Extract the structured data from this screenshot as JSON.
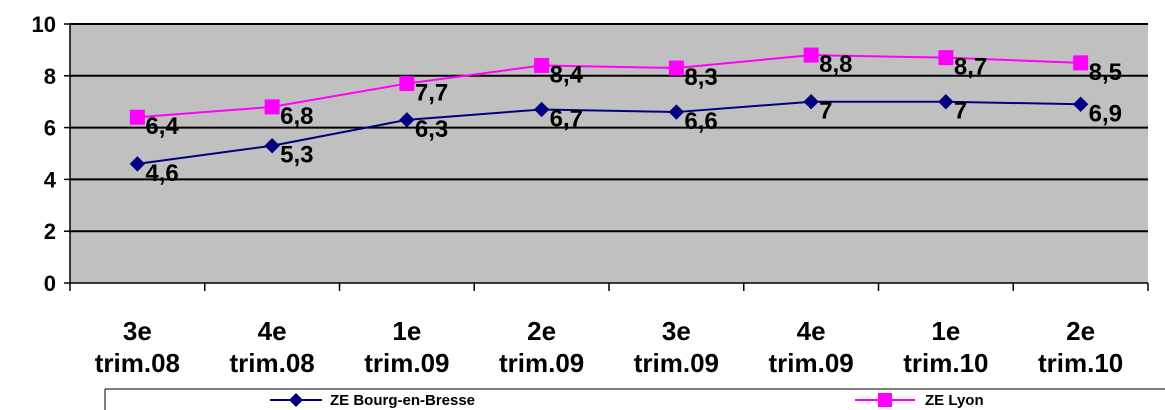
{
  "chart_data": {
    "type": "line",
    "categories": [
      [
        "3e",
        "trim.08"
      ],
      [
        "4e",
        "trim.08"
      ],
      [
        "1e",
        "trim.09"
      ],
      [
        "2e",
        "trim.09"
      ],
      [
        "3e",
        "trim.09"
      ],
      [
        "4e",
        "trim.09"
      ],
      [
        "1e",
        "trim.10"
      ],
      [
        "2e",
        "trim.10"
      ]
    ],
    "series": [
      {
        "name": "ZE Bourg-en-Bresse",
        "color": "#000080",
        "marker": "diamond",
        "values": [
          4.6,
          5.3,
          6.3,
          6.7,
          6.6,
          7,
          7,
          6.9
        ],
        "labels": [
          "4,6",
          "5,3",
          "6,3",
          "6,7",
          "6,6",
          "7",
          "7",
          "6,9"
        ]
      },
      {
        "name": "ZE Lyon",
        "color": "#FF00FF",
        "marker": "square",
        "values": [
          6.4,
          6.8,
          7.7,
          8.4,
          8.3,
          8.8,
          8.7,
          8.5
        ],
        "labels": [
          "6,4",
          "6,8",
          "7,7",
          "8,4",
          "8,3",
          "8,8",
          "8,7",
          "8,5"
        ]
      }
    ],
    "ylim": [
      0,
      10
    ],
    "yticks": [
      0,
      2,
      4,
      6,
      8,
      10
    ],
    "grid": true,
    "plot_background": "#C0C0C0",
    "legend_position": "bottom",
    "title": "",
    "xlabel": "",
    "ylabel": ""
  }
}
